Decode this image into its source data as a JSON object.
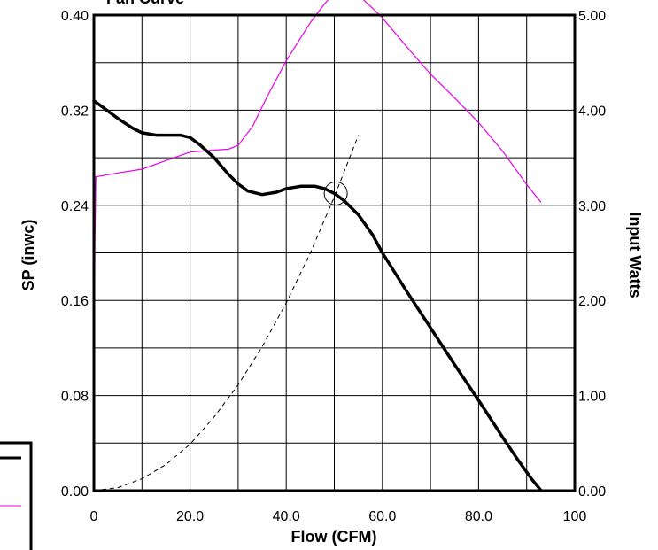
{
  "chart_data": {
    "type": "line",
    "title": "Fan Curve",
    "xlabel": "Flow (CFM)",
    "ylabel_left": "SP (inwc)",
    "ylabel_right": "Input Watts",
    "xlim": [
      0,
      100
    ],
    "ylim_left": [
      0,
      0.4
    ],
    "ylim_right": [
      0,
      5
    ],
    "x_ticks": [
      "0",
      "20.0",
      "40.0",
      "60.0",
      "80.0",
      "100"
    ],
    "y_left_ticks": [
      "0.00",
      "0.08",
      "0.16",
      "0.24",
      "0.32",
      "0.40"
    ],
    "y_right_ticks": [
      "0.00",
      "1.00",
      "2.00",
      "3.00",
      "4.00",
      "5.00"
    ],
    "grid": true,
    "colors": {
      "sp": "#000000",
      "watts": "#e600e6",
      "system": "#000000",
      "operating_point": "#000000"
    },
    "series": [
      {
        "axis": "left",
        "style": "solid-thick",
        "x": [
          0,
          2,
          5,
          8,
          10,
          13,
          15,
          18,
          20,
          22,
          25,
          28,
          30,
          32,
          35,
          38,
          40,
          43,
          46,
          48,
          50,
          52,
          55,
          58,
          60,
          65,
          70,
          75,
          80,
          85,
          88,
          91,
          93
        ],
        "y": [
          0.328,
          0.322,
          0.313,
          0.305,
          0.301,
          0.299,
          0.299,
          0.299,
          0.297,
          0.291,
          0.28,
          0.266,
          0.258,
          0.252,
          0.249,
          0.251,
          0.254,
          0.256,
          0.256,
          0.254,
          0.25,
          0.244,
          0.232,
          0.215,
          0.2,
          0.168,
          0.137,
          0.106,
          0.076,
          0.045,
          0.027,
          0.01,
          0.0
        ]
      },
      {
        "axis": "right",
        "style": "solid-thin",
        "x": [
          0,
          0.2,
          0.4,
          5,
          10,
          15,
          20,
          25,
          28,
          30,
          33,
          36,
          40,
          45,
          48,
          50,
          52,
          53,
          55,
          58,
          60,
          65,
          70,
          75,
          80,
          85,
          90,
          93
        ],
        "y": [
          0.0,
          2.6,
          3.3,
          3.34,
          3.38,
          3.47,
          3.56,
          3.58,
          3.59,
          3.63,
          3.83,
          4.14,
          4.52,
          4.92,
          5.12,
          5.23,
          5.27,
          5.26,
          5.21,
          5.07,
          4.97,
          4.67,
          4.38,
          4.13,
          3.87,
          3.57,
          3.22,
          3.03
        ]
      },
      {
        "axis": "left",
        "style": "dashed",
        "x": [
          0,
          5,
          10,
          15,
          20,
          25,
          30,
          35,
          40,
          45,
          50,
          55
        ],
        "y": [
          0.0,
          0.0025,
          0.01,
          0.022,
          0.039,
          0.062,
          0.089,
          0.121,
          0.158,
          0.2,
          0.247,
          0.299
        ]
      }
    ],
    "operating_point": {
      "x": 50.3,
      "y": 0.25
    }
  }
}
